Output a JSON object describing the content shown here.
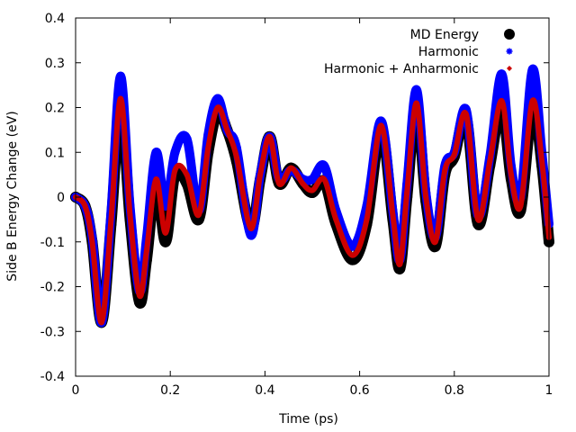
{
  "chart_data": {
    "type": "line",
    "xlabel": "Time (ps)",
    "ylabel": "Side B Energy Change (eV)",
    "xlim": [
      0,
      1
    ],
    "ylim": [
      -0.4,
      0.4
    ],
    "x_ticks": [
      0,
      0.2,
      0.4,
      0.6,
      0.8,
      1
    ],
    "x_tick_labels": [
      "0",
      "0.2",
      "0.4",
      "0.6",
      "0.8",
      "1"
    ],
    "y_ticks": [
      -0.4,
      -0.3,
      -0.2,
      -0.1,
      0,
      0.1,
      0.2,
      0.3,
      0.4
    ],
    "y_tick_labels": [
      "-0.4",
      "-0.3",
      "-0.2",
      "-0.1",
      "0",
      "0.1",
      "0.2",
      "0.3",
      "0.4"
    ],
    "grid": false,
    "legend_position": "top-right",
    "x": [
      0,
      0.02,
      0.035,
      0.055,
      0.075,
      0.095,
      0.115,
      0.135,
      0.15,
      0.17,
      0.19,
      0.21,
      0.235,
      0.26,
      0.28,
      0.3,
      0.32,
      0.34,
      0.37,
      0.39,
      0.41,
      0.43,
      0.455,
      0.48,
      0.5,
      0.525,
      0.55,
      0.585,
      0.615,
      0.645,
      0.67,
      0.685,
      0.7,
      0.72,
      0.74,
      0.76,
      0.78,
      0.8,
      0.825,
      0.85,
      0.875,
      0.9,
      0.92,
      0.94,
      0.965,
      0.985,
      1.0
    ],
    "series": [
      {
        "name": "MD Energy",
        "color": "#000000",
        "marker": "circle",
        "values": [
          0.0,
          -0.02,
          -0.1,
          -0.28,
          -0.06,
          0.2,
          -0.05,
          -0.235,
          -0.14,
          0.03,
          -0.1,
          0.05,
          0.03,
          -0.05,
          0.1,
          0.19,
          0.15,
          0.08,
          -0.07,
          0.04,
          0.135,
          0.03,
          0.065,
          0.03,
          0.01,
          0.035,
          -0.06,
          -0.14,
          -0.06,
          0.15,
          -0.05,
          -0.16,
          0.0,
          0.2,
          -0.01,
          -0.11,
          0.05,
          0.09,
          0.18,
          -0.06,
          0.07,
          0.2,
          0.04,
          -0.03,
          0.2,
          0.07,
          -0.1
        ]
      },
      {
        "name": "Harmonic",
        "color": "#0000ff",
        "marker": "asterisk",
        "values": [
          0.0,
          -0.02,
          -0.09,
          -0.28,
          -0.03,
          0.27,
          -0.02,
          -0.21,
          -0.09,
          0.1,
          -0.02,
          0.1,
          0.13,
          -0.03,
          0.14,
          0.22,
          0.15,
          0.11,
          -0.085,
          0.05,
          0.135,
          0.04,
          0.06,
          0.04,
          0.04,
          0.07,
          -0.03,
          -0.11,
          -0.02,
          0.17,
          -0.03,
          -0.14,
          0.03,
          0.24,
          0.01,
          -0.09,
          0.07,
          0.1,
          0.195,
          -0.04,
          0.09,
          0.275,
          0.07,
          0.0,
          0.285,
          0.1,
          -0.06
        ]
      },
      {
        "name": "Harmonic + Anharmonic",
        "color": "#cc0000",
        "marker": "diamond",
        "values": [
          0.0,
          -0.02,
          -0.1,
          -0.28,
          -0.05,
          0.22,
          -0.04,
          -0.22,
          -0.12,
          0.04,
          -0.08,
          0.06,
          0.05,
          -0.04,
          0.11,
          0.2,
          0.15,
          0.09,
          -0.07,
          0.05,
          0.135,
          0.03,
          0.065,
          0.03,
          0.015,
          0.04,
          -0.05,
          -0.13,
          -0.05,
          0.16,
          -0.04,
          -0.15,
          0.01,
          0.21,
          0.0,
          -0.1,
          0.06,
          0.095,
          0.185,
          -0.05,
          0.08,
          0.215,
          0.05,
          -0.02,
          0.215,
          0.08,
          -0.09
        ]
      }
    ]
  }
}
